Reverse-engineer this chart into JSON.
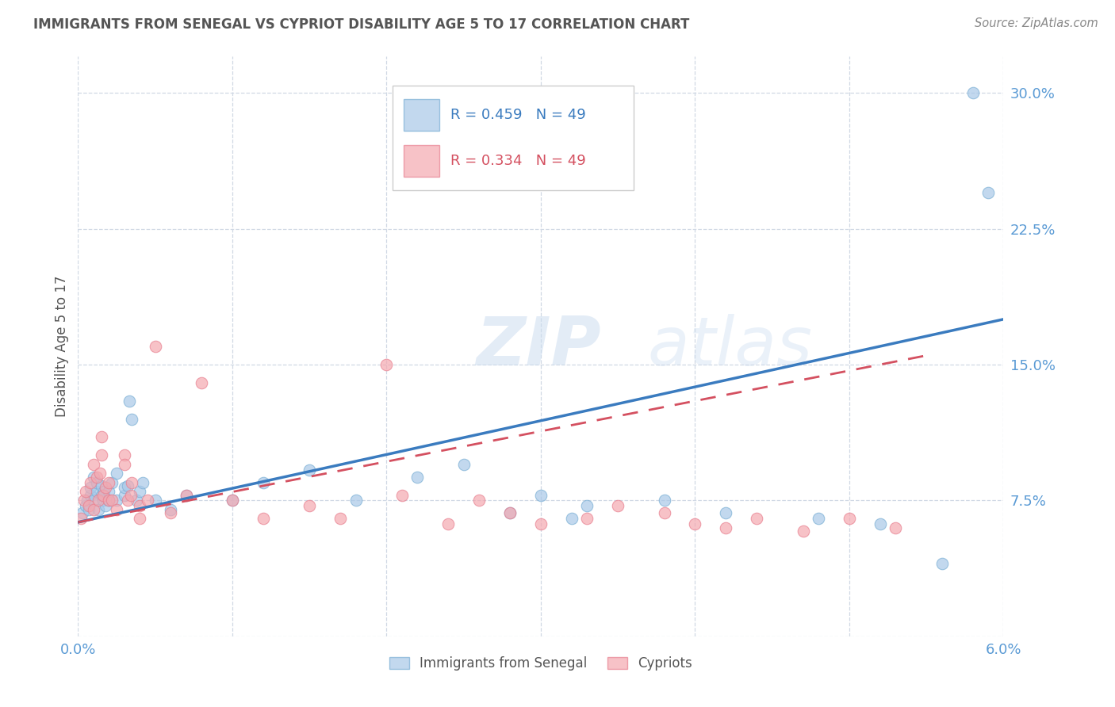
{
  "title": "IMMIGRANTS FROM SENEGAL VS CYPRIOT DISABILITY AGE 5 TO 17 CORRELATION CHART",
  "source": "Source: ZipAtlas.com",
  "ylabel": "Disability Age 5 to 17",
  "xlim": [
    0.0,
    0.06
  ],
  "ylim": [
    0.0,
    0.32
  ],
  "xticks": [
    0.0,
    0.01,
    0.02,
    0.03,
    0.04,
    0.05,
    0.06
  ],
  "xticklabels": [
    "0.0%",
    "",
    "",
    "",
    "",
    "",
    "6.0%"
  ],
  "yticks": [
    0.0,
    0.075,
    0.15,
    0.225,
    0.3
  ],
  "yticklabels": [
    "",
    "7.5%",
    "15.0%",
    "22.5%",
    "30.0%"
  ],
  "legend_blue_r": "R = 0.459",
  "legend_blue_n": "N = 49",
  "legend_pink_r": "R = 0.334",
  "legend_pink_n": "N = 49",
  "blue_color": "#a8c8e8",
  "pink_color": "#f4a8b0",
  "blue_scatter_edge": "#7aafd4",
  "pink_scatter_edge": "#e88090",
  "blue_line_color": "#3a7bbf",
  "pink_line_color": "#d45060",
  "watermark_zip": "ZIP",
  "watermark_atlas": "atlas",
  "blue_scatter_x": [
    0.0003,
    0.0005,
    0.0006,
    0.0007,
    0.0008,
    0.0008,
    0.001,
    0.001,
    0.0012,
    0.0012,
    0.0013,
    0.0015,
    0.0015,
    0.0016,
    0.0017,
    0.0018,
    0.002,
    0.002,
    0.0022,
    0.0025,
    0.0025,
    0.003,
    0.003,
    0.0032,
    0.0033,
    0.0035,
    0.0038,
    0.004,
    0.0042,
    0.005,
    0.006,
    0.007,
    0.01,
    0.012,
    0.015,
    0.018,
    0.022,
    0.025,
    0.028,
    0.03,
    0.032,
    0.033,
    0.038,
    0.042,
    0.048,
    0.052,
    0.056,
    0.058,
    0.059
  ],
  "blue_scatter_y": [
    0.068,
    0.072,
    0.075,
    0.07,
    0.078,
    0.082,
    0.075,
    0.088,
    0.08,
    0.085,
    0.07,
    0.078,
    0.083,
    0.075,
    0.08,
    0.072,
    0.075,
    0.08,
    0.085,
    0.075,
    0.09,
    0.078,
    0.082,
    0.083,
    0.13,
    0.12,
    0.075,
    0.08,
    0.085,
    0.075,
    0.07,
    0.078,
    0.075,
    0.085,
    0.092,
    0.075,
    0.088,
    0.095,
    0.068,
    0.078,
    0.065,
    0.072,
    0.075,
    0.068,
    0.065,
    0.062,
    0.04,
    0.3,
    0.245
  ],
  "pink_scatter_x": [
    0.0002,
    0.0004,
    0.0005,
    0.0007,
    0.0008,
    0.001,
    0.001,
    0.0012,
    0.0013,
    0.0014,
    0.0015,
    0.0015,
    0.0016,
    0.0018,
    0.002,
    0.002,
    0.0022,
    0.0025,
    0.003,
    0.003,
    0.0032,
    0.0034,
    0.0035,
    0.004,
    0.004,
    0.0045,
    0.005,
    0.006,
    0.007,
    0.008,
    0.01,
    0.012,
    0.015,
    0.017,
    0.02,
    0.021,
    0.024,
    0.026,
    0.028,
    0.03,
    0.033,
    0.035,
    0.038,
    0.04,
    0.042,
    0.044,
    0.047,
    0.05,
    0.053
  ],
  "pink_scatter_y": [
    0.065,
    0.075,
    0.08,
    0.072,
    0.085,
    0.07,
    0.095,
    0.088,
    0.075,
    0.09,
    0.1,
    0.11,
    0.078,
    0.082,
    0.075,
    0.085,
    0.075,
    0.07,
    0.1,
    0.095,
    0.075,
    0.078,
    0.085,
    0.065,
    0.072,
    0.075,
    0.16,
    0.068,
    0.078,
    0.14,
    0.075,
    0.065,
    0.072,
    0.065,
    0.15,
    0.078,
    0.062,
    0.075,
    0.068,
    0.062,
    0.065,
    0.072,
    0.068,
    0.062,
    0.06,
    0.065,
    0.058,
    0.065,
    0.06
  ],
  "blue_trend": [
    0.0,
    0.06,
    0.063,
    0.175
  ],
  "pink_trend": [
    0.0,
    0.055,
    0.063,
    0.155
  ],
  "background_color": "#ffffff",
  "grid_color": "#d0d8e4",
  "tick_label_color": "#5b9bd5",
  "title_color": "#555555",
  "source_color": "#888888"
}
